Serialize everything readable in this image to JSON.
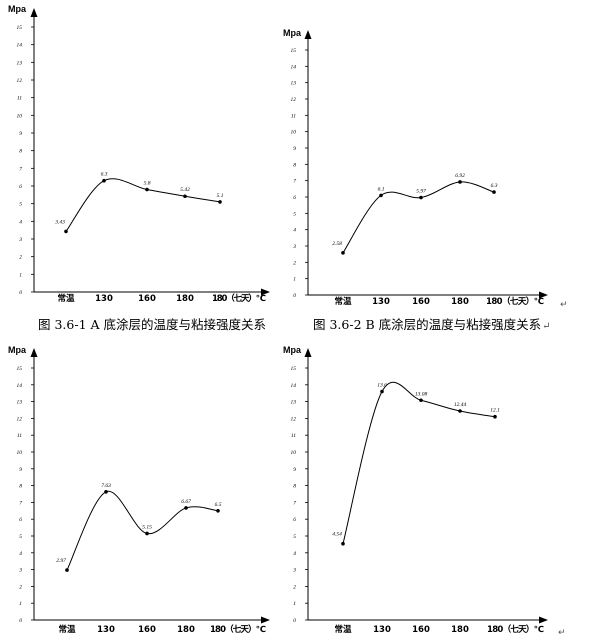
{
  "chart_data": [
    {
      "type": "line",
      "ylabel": "Mpa",
      "categories": [
        "常温",
        "130",
        "160",
        "180",
        "180（七天）℃"
      ],
      "values": [
        3.43,
        6.3,
        5.8,
        5.42,
        5.1
      ],
      "data_labels": [
        "3.43",
        "6.3",
        "5.8",
        "5.42",
        "5.1"
      ],
      "ylim": [
        0,
        15
      ],
      "yticks": [
        "0",
        "1",
        "2",
        "3",
        "4",
        "5",
        "6",
        "7",
        "8",
        "9",
        "10",
        "11",
        "12",
        "13",
        "14",
        "15"
      ],
      "caption": "图 3.6-1 A 底涂层的温度与粘接强度关系",
      "grid": false
    },
    {
      "type": "line",
      "ylabel": "Mpa",
      "categories": [
        "常温",
        "130",
        "160",
        "180",
        "180（七天）℃"
      ],
      "values": [
        2.58,
        6.1,
        5.97,
        6.92,
        6.3
      ],
      "data_labels": [
        "2.58",
        "6.1",
        "5.97",
        "6.92",
        "6.3"
      ],
      "ylim": [
        0,
        15
      ],
      "yticks": [
        "0",
        "1",
        "2",
        "3",
        "4",
        "5",
        "6",
        "7",
        "8",
        "9",
        "10",
        "11",
        "12",
        "13",
        "14",
        "15"
      ],
      "caption": "图 3.6-2 B 底涂层的温度与粘接强度关系",
      "grid": false
    },
    {
      "type": "line",
      "ylabel": "Mpa",
      "categories": [
        "常温",
        "130",
        "160",
        "180",
        "180（七天）℃"
      ],
      "values": [
        2.97,
        7.63,
        5.15,
        6.67,
        6.5
      ],
      "data_labels": [
        "2.97",
        "7.63",
        "5.15",
        "6.67",
        "6.5"
      ],
      "ylim": [
        0,
        15
      ],
      "yticks": [
        "0",
        "1",
        "2",
        "3",
        "4",
        "5",
        "6",
        "7",
        "8",
        "9",
        "10",
        "11",
        "12",
        "13",
        "14",
        "15"
      ],
      "caption": "",
      "grid": false
    },
    {
      "type": "line",
      "ylabel": "Mpa",
      "categories": [
        "常温",
        "130",
        "160",
        "180",
        "180（七天）℃"
      ],
      "values": [
        4.54,
        13.6,
        13.08,
        12.44,
        12.1
      ],
      "data_labels": [
        "4.54",
        "13.6",
        "13.08",
        "12.44",
        "12.1"
      ],
      "ylim": [
        0,
        15
      ],
      "yticks": [
        "0",
        "1",
        "2",
        "3",
        "4",
        "5",
        "6",
        "7",
        "8",
        "9",
        "10",
        "11",
        "12",
        "13",
        "14",
        "15"
      ],
      "caption": "",
      "grid": false
    }
  ],
  "return_mark": "↵",
  "colors": {
    "line": "#000000",
    "text": "#000000"
  }
}
